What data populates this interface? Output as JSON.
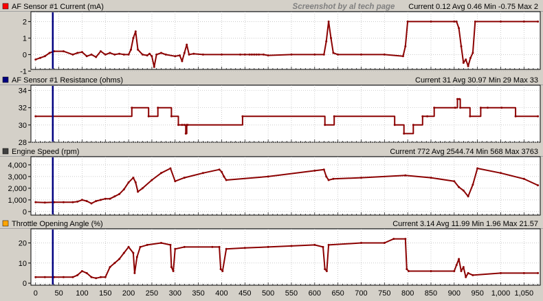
{
  "watermark": "Screenshot by al tech page",
  "x_axis": {
    "ticks": [
      0,
      50,
      100,
      150,
      200,
      250,
      300,
      350,
      400,
      450,
      500,
      550,
      600,
      650,
      700,
      750,
      800,
      850,
      900,
      950,
      1000,
      1050
    ],
    "tick_labels": [
      "0",
      "50",
      "100",
      "150",
      "200",
      "250",
      "300",
      "350",
      "400",
      "450",
      "500",
      "550",
      "600",
      "650",
      "700",
      "750",
      "800",
      "850",
      "900",
      "950",
      "1,000",
      "1,050"
    ],
    "range": [
      -10,
      1085
    ]
  },
  "cursor_x": 37,
  "line_color": "#8b0000",
  "cursor_color": "#000080",
  "chart_data": [
    {
      "type": "line",
      "title": "AF Sensor #1 Current (mA)",
      "legend_color": "#ff0000",
      "stats": "Current 0.12 Avg 0.46 Min -0.75 Max 2",
      "ylim": [
        -0.9,
        2.6
      ],
      "yticks": [
        -1,
        0,
        1,
        2
      ],
      "ytick_labels": [
        "-1",
        "0",
        "1",
        "2"
      ],
      "series": [
        {
          "x": [
            0,
            10,
            20,
            30,
            40,
            60,
            80,
            90,
            100,
            110,
            120,
            130,
            140,
            150,
            160,
            170,
            180,
            190,
            200,
            205,
            210,
            215,
            220,
            230,
            240,
            245,
            250,
            255,
            260,
            270,
            280,
            300,
            310,
            315,
            320,
            325,
            330,
            340,
            360,
            400,
            440,
            450,
            460,
            465,
            470,
            475,
            480,
            490,
            500,
            550,
            600,
            620,
            625,
            630,
            635,
            640,
            650,
            700,
            750,
            790,
            795,
            800,
            850,
            900,
            905,
            910,
            915,
            920,
            925,
            930,
            935,
            940,
            945,
            1000,
            1050,
            1080
          ],
          "values": [
            -0.3,
            -0.2,
            -0.1,
            0.1,
            0.2,
            0.2,
            0.0,
            0.1,
            0.15,
            -0.1,
            0.0,
            -0.15,
            0.2,
            0.0,
            0.1,
            0.0,
            0.05,
            0.0,
            0.0,
            0.3,
            1.0,
            1.4,
            0.3,
            0.0,
            -0.05,
            0.05,
            -0.1,
            -0.75,
            0.0,
            0.1,
            0.0,
            -0.1,
            -0.05,
            -0.4,
            0.1,
            0.6,
            0.0,
            0.05,
            0.0,
            0.0,
            0.0,
            0.0,
            0.0,
            0.0,
            0.0,
            0.0,
            0.0,
            0.0,
            -0.05,
            0.0,
            0.0,
            0.0,
            0.8,
            2.0,
            1.0,
            0.1,
            0.0,
            0.0,
            0.0,
            -0.1,
            0.5,
            2.0,
            2.0,
            2.0,
            2.0,
            1.6,
            0.5,
            -0.5,
            -0.3,
            -0.7,
            -0.2,
            0.1,
            2.0,
            2.0,
            2.0,
            2.0
          ]
        }
      ]
    },
    {
      "type": "line",
      "title": "AF Sensor #1 Resistance (ohms)",
      "legend_color": "#000080",
      "stats": "Current 31 Avg 30.97 Min 29 Max 33",
      "ylim": [
        28,
        34.6
      ],
      "yticks": [
        28,
        30,
        32,
        34
      ],
      "ytick_labels": [
        "28",
        "30",
        "32",
        "34"
      ],
      "series": [
        {
          "step": true,
          "x": [
            0,
            207,
            243,
            263,
            292,
            307,
            315,
            320,
            323,
            325,
            327,
            445,
            622,
            642,
            772,
            792,
            812,
            832,
            842,
            857,
            902,
            907,
            911,
            913,
            934,
            957,
            972,
            1002,
            1032,
            1080
          ],
          "values": [
            31,
            32,
            31,
            32,
            31,
            30,
            30,
            30,
            29,
            30,
            30,
            31,
            30,
            31,
            30,
            29,
            30,
            31,
            31,
            32,
            32,
            33,
            33,
            32,
            31,
            32,
            32,
            32,
            31,
            31
          ]
        }
      ]
    },
    {
      "type": "line",
      "title": "Engine Speed (rpm)",
      "legend_color": "#404040",
      "stats": "Current 772 Avg 2544.74 Min 568 Max 3763",
      "ylim": [
        -300,
        4700
      ],
      "yticks": [
        0,
        1000,
        2000,
        3000,
        4000
      ],
      "ytick_labels": [
        "0",
        "1,000",
        "2,000",
        "3,000",
        "4,000"
      ],
      "series": [
        {
          "x": [
            0,
            20,
            40,
            60,
            80,
            90,
            100,
            110,
            120,
            130,
            140,
            150,
            160,
            170,
            180,
            190,
            200,
            210,
            215,
            220,
            230,
            250,
            270,
            290,
            300,
            320,
            360,
            395,
            400,
            405,
            410,
            500,
            600,
            620,
            625,
            630,
            640,
            700,
            795,
            850,
            900,
            910,
            920,
            930,
            940,
            950,
            1000,
            1050,
            1080
          ],
          "values": [
            800,
            770,
            800,
            800,
            800,
            850,
            1000,
            900,
            700,
            900,
            1000,
            1100,
            1100,
            1300,
            1500,
            1900,
            2500,
            2900,
            2500,
            1700,
            2000,
            2700,
            3300,
            3700,
            2600,
            2900,
            3300,
            3600,
            3400,
            3000,
            2700,
            3000,
            3500,
            3600,
            3000,
            2700,
            2800,
            2900,
            3100,
            2900,
            2600,
            2100,
            1800,
            1300,
            2300,
            3700,
            3300,
            2800,
            2250
          ]
        }
      ]
    },
    {
      "type": "line",
      "title": "Throttle Opening Angle (%)",
      "legend_color": "#ffa500",
      "stats": "Current 3.14 Avg 11.99 Min 1.96 Max 21.57",
      "ylim": [
        -1,
        27
      ],
      "yticks": [
        0,
        10,
        20
      ],
      "ytick_labels": [
        "0",
        "10",
        "20"
      ],
      "series": [
        {
          "x": [
            0,
            20,
            40,
            60,
            80,
            90,
            100,
            110,
            120,
            130,
            140,
            150,
            160,
            170,
            180,
            190,
            200,
            210,
            213,
            218,
            225,
            240,
            270,
            290,
            292,
            296,
            300,
            320,
            380,
            395,
            398,
            402,
            410,
            450,
            500,
            550,
            600,
            618,
            622,
            626,
            630,
            700,
            750,
            770,
            795,
            798,
            802,
            850,
            900,
            905,
            910,
            915,
            920,
            925,
            930,
            940,
            1000,
            1050,
            1080
          ],
          "values": [
            3,
            3,
            3,
            3,
            3,
            4,
            6,
            5,
            3,
            2.5,
            3,
            3,
            8,
            10,
            12,
            15,
            18,
            15,
            5,
            13,
            18,
            19,
            20,
            19,
            8,
            6,
            17,
            18,
            18,
            18,
            7,
            6,
            17,
            17.5,
            18,
            18.5,
            19,
            18,
            7,
            6,
            19,
            20,
            20,
            22,
            22,
            7,
            6,
            6,
            6,
            9,
            12,
            6,
            8,
            3,
            5,
            4,
            5,
            5,
            5
          ]
        }
      ]
    }
  ]
}
